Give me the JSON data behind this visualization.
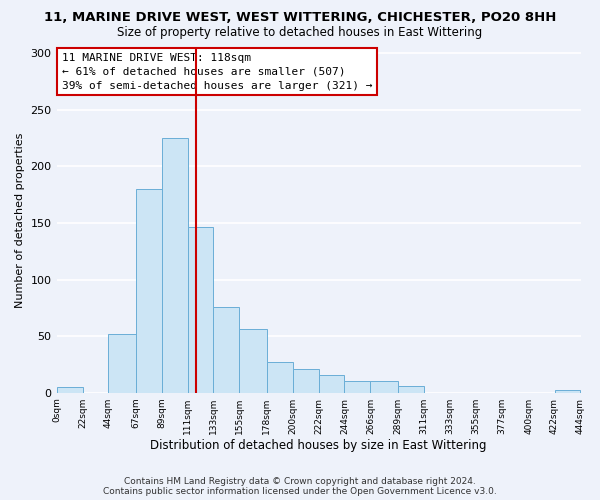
{
  "title": "11, MARINE DRIVE WEST, WEST WITTERING, CHICHESTER, PO20 8HH",
  "subtitle": "Size of property relative to detached houses in East Wittering",
  "xlabel": "Distribution of detached houses by size in East Wittering",
  "ylabel": "Number of detached properties",
  "bar_edges": [
    0,
    22,
    44,
    67,
    89,
    111,
    133,
    155,
    178,
    200,
    222,
    244,
    266,
    289,
    311,
    333,
    355,
    377,
    400,
    422,
    444
  ],
  "bar_heights": [
    5,
    0,
    52,
    180,
    225,
    146,
    76,
    56,
    27,
    21,
    16,
    10,
    10,
    6,
    0,
    0,
    0,
    0,
    0,
    2
  ],
  "bar_color": "#cce5f5",
  "bar_edgecolor": "#6aaed6",
  "vline_x": 118,
  "vline_color": "#cc0000",
  "ylim": [
    0,
    305
  ],
  "yticks": [
    0,
    50,
    100,
    150,
    200,
    250,
    300
  ],
  "xtick_labels": [
    "0sqm",
    "22sqm",
    "44sqm",
    "67sqm",
    "89sqm",
    "111sqm",
    "133sqm",
    "155sqm",
    "178sqm",
    "200sqm",
    "222sqm",
    "244sqm",
    "266sqm",
    "289sqm",
    "311sqm",
    "333sqm",
    "355sqm",
    "377sqm",
    "400sqm",
    "422sqm",
    "444sqm"
  ],
  "annotation_title": "11 MARINE DRIVE WEST: 118sqm",
  "annotation_line1": "← 61% of detached houses are smaller (507)",
  "annotation_line2": "39% of semi-detached houses are larger (321) →",
  "footnote1": "Contains HM Land Registry data © Crown copyright and database right 2024.",
  "footnote2": "Contains public sector information licensed under the Open Government Licence v3.0.",
  "bg_color": "#eef2fa",
  "plot_bg_color": "#eef2fa",
  "grid_color": "#ffffff",
  "title_fontsize": 9.5,
  "subtitle_fontsize": 8.5,
  "xlabel_fontsize": 8.5,
  "ylabel_fontsize": 8,
  "xtick_fontsize": 6.5,
  "ytick_fontsize": 8,
  "footnote_fontsize": 6.5,
  "annot_fontsize": 8
}
